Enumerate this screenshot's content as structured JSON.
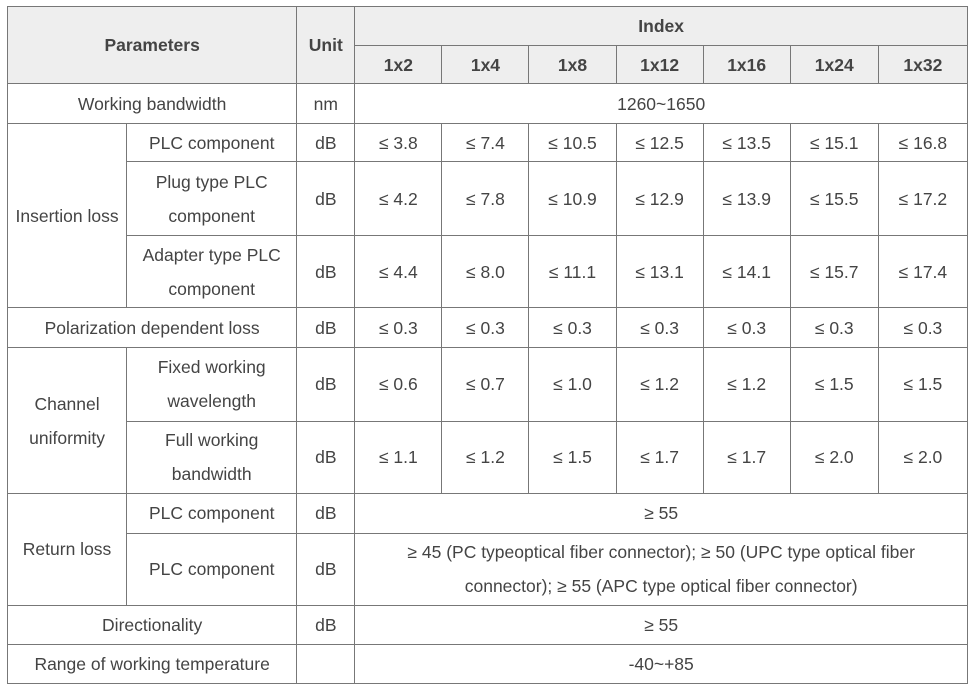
{
  "header": {
    "parameters": "Parameters",
    "unit": "Unit",
    "index": "Index",
    "ports": [
      "1x2",
      "1x4",
      "1x8",
      "1x12",
      "1x16",
      "1x24",
      "1x32"
    ]
  },
  "rows": {
    "working_bandwidth": {
      "label": "Working bandwidth",
      "unit": "nm",
      "value": "1260~1650"
    },
    "insertion_loss": {
      "label": "Insertion loss",
      "plc": {
        "label": "PLC component",
        "unit": "dB",
        "values": [
          "≤ 3.8",
          "≤ 7.4",
          "≤ 10.5",
          "≤ 12.5",
          "≤ 13.5",
          "≤ 15.1",
          "≤ 16.8"
        ]
      },
      "plug": {
        "label_line1": "Plug type PLC",
        "label_line2": "component",
        "unit": "dB",
        "values": [
          "≤ 4.2",
          "≤ 7.8",
          "≤ 10.9",
          "≤ 12.9",
          "≤ 13.9",
          "≤ 15.5",
          "≤ 17.2"
        ]
      },
      "adapter": {
        "label_line1": "Adapter type PLC",
        "label_line2": "component",
        "unit": "dB",
        "values": [
          "≤ 4.4",
          "≤ 8.0",
          "≤ 11.1",
          "≤ 13.1",
          "≤ 14.1",
          "≤ 15.7",
          "≤ 17.4"
        ]
      }
    },
    "pdl": {
      "label": "Polarization dependent loss",
      "unit": "dB",
      "values": [
        "≤ 0.3",
        "≤ 0.3",
        "≤ 0.3",
        "≤ 0.3",
        "≤ 0.3",
        "≤ 0.3",
        "≤ 0.3"
      ]
    },
    "channel_uniformity": {
      "label_line1": "Channel",
      "label_line2": "uniformity",
      "fixed": {
        "label_line1": "Fixed working",
        "label_line2": "wavelength",
        "unit": "dB",
        "values": [
          "≤ 0.6",
          "≤ 0.7",
          "≤ 1.0",
          "≤ 1.2",
          "≤ 1.2",
          "≤ 1.5",
          "≤ 1.5"
        ]
      },
      "full": {
        "label_line1": "Full working",
        "label_line2": "bandwidth",
        "unit": "dB",
        "values": [
          "≤ 1.1",
          "≤ 1.2",
          "≤ 1.5",
          "≤ 1.7",
          "≤ 1.7",
          "≤ 2.0",
          "≤ 2.0"
        ]
      }
    },
    "return_loss": {
      "label": "Return loss",
      "plc1": {
        "label": "PLC component",
        "unit": "dB",
        "value": "≥ 55"
      },
      "plc2": {
        "label": "PLC component",
        "unit": "dB",
        "value_line1": "≥ 45 (PC typeoptical fiber connector); ≥ 50 (UPC type optical fiber",
        "value_line2": "connector); ≥ 55 (APC type optical fiber connector)"
      }
    },
    "directionality": {
      "label": "Directionality",
      "unit": "dB",
      "value": "≥ 55"
    },
    "temperature": {
      "label": "Range of working temperature",
      "unit": "",
      "value": "-40~+85"
    }
  }
}
